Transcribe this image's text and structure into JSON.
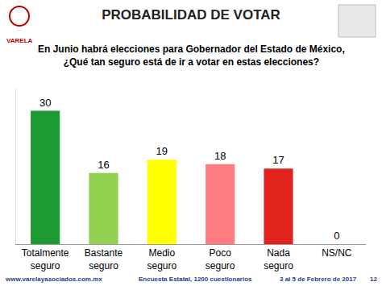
{
  "chart_data": {
    "type": "bar",
    "title": "PROBABILIDAD DE VOTAR",
    "subtitle": [
      "En Junio habrá elecciones para Gobernador del Estado de México,",
      "¿Qué tan seguro está de ir a votar en estas elecciones?"
    ],
    "categories": [
      "Totalmente seguro",
      "Bastante seguro",
      "Medio seguro",
      "Poco seguro",
      "Nada seguro",
      "NS/NC"
    ],
    "values": [
      30,
      16,
      19,
      18,
      17,
      0
    ],
    "colors": [
      "#1e9a32",
      "#92d050",
      "#ffff00",
      "#ff7c80",
      "#e0231c",
      "#a6a6a6"
    ],
    "ylim": [
      0,
      35
    ],
    "yticks": [],
    "grid": false,
    "data_labels": true,
    "tick_labels": "x"
  },
  "logo": "VARELA",
  "footer": [
    "www.varelayasociados.com.mx",
    "Encuesta Estatal, 1200 cuestionarios",
    "3 al 5 de Febrero de 2017",
    "12"
  ]
}
